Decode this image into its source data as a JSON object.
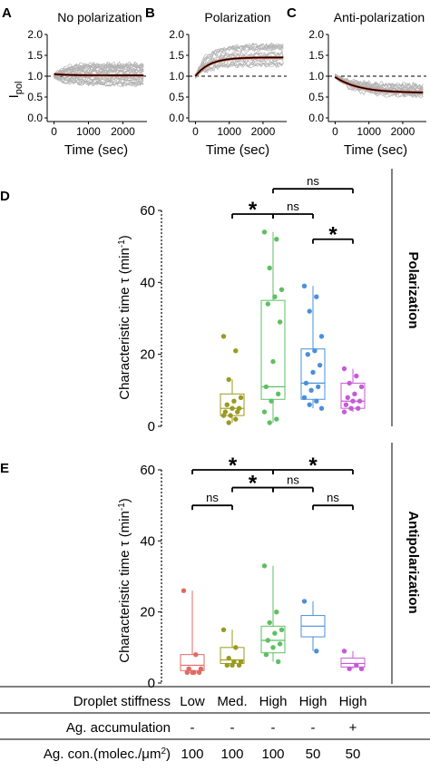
{
  "panel_letters": [
    "A",
    "B",
    "C",
    "D",
    "E"
  ],
  "colors": {
    "trace": "#b3b3b3",
    "fit_mean": "#000000",
    "fit_overlay": "#ee6a50",
    "condition_1": "#e06a63",
    "condition_2": "#9b9a1e",
    "condition_3": "#5ebf63",
    "condition_4": "#4a90d9",
    "condition_5": "#c75ad6"
  },
  "top_axes": {
    "ylabel_main": "I",
    "ylabel_sub": "pol",
    "xlabel": "Time (sec)"
  },
  "box_axes": {
    "ylabel_main": "Characteristic time  τ  (min",
    "ylabel_sup": "-1",
    "ylabel_close": ")"
  },
  "side_labels": {
    "D": "Polarization",
    "E": "Antipolarization"
  },
  "table": {
    "rows": [
      {
        "label": "Droplet stiffness",
        "values": [
          "Low",
          "Med.",
          "High",
          "High",
          "High"
        ]
      },
      {
        "label": "Ag. accumulation",
        "values": [
          "-",
          "-",
          "-",
          "-",
          "+"
        ]
      },
      {
        "label": "Ag. con.(molec./μm",
        "label_sup": "2",
        "label_close": ")",
        "values": [
          "100",
          "100",
          "100",
          "50",
          "50"
        ]
      }
    ]
  },
  "chart_data": [
    {
      "panel": "A",
      "type": "line",
      "title": "No polarization",
      "xlabel": "Time (sec)",
      "ylabel": "I pol",
      "xlim": [
        -200,
        2700
      ],
      "ylim": [
        0,
        2.0
      ],
      "xticks": [
        0,
        1000,
        2000
      ],
      "yticks": [
        0.0,
        0.5,
        1.0,
        1.5,
        2.0
      ],
      "reference_line": 1.0,
      "traces": {
        "count": 28,
        "start": 1.0,
        "end_min": 0.8,
        "end_max": 1.3,
        "tau": 300
      },
      "fit": {
        "start": 1.05,
        "end": 1.02,
        "tau": 400
      }
    },
    {
      "panel": "B",
      "type": "line",
      "title": "Polarization",
      "xlabel": "Time (sec)",
      "ylabel": "I pol",
      "xlim": [
        -200,
        2700
      ],
      "ylim": [
        0,
        2.0
      ],
      "xticks": [
        0,
        1000,
        2000
      ],
      "yticks": [
        0.0,
        0.5,
        1.0,
        1.5,
        2.0
      ],
      "reference_line": 1.0,
      "traces": {
        "count": 20,
        "start": 1.0,
        "end_min": 1.2,
        "end_max": 1.85,
        "tau": 400
      },
      "fit": {
        "start": 1.0,
        "end": 1.45,
        "tau": 420
      }
    },
    {
      "panel": "C",
      "type": "line",
      "title": "Anti-polarization",
      "xlabel": "Time (sec)",
      "ylabel": "I pol",
      "xlim": [
        -200,
        2700
      ],
      "ylim": [
        0,
        2.0
      ],
      "xticks": [
        0,
        1000,
        2000
      ],
      "yticks": [
        0.0,
        0.5,
        1.0,
        1.5,
        2.0
      ],
      "reference_line": 1.0,
      "traces": {
        "count": 20,
        "start": 1.0,
        "end_min": 0.45,
        "end_max": 0.8,
        "tau": 650
      },
      "fit": {
        "start": 0.98,
        "end": 0.6,
        "tau": 700
      }
    },
    {
      "panel": "D",
      "type": "box",
      "ylabel": "Characteristic time τ (min-1)",
      "ylim": [
        0,
        60
      ],
      "yticks": [
        0,
        20,
        40,
        60
      ],
      "groups": [
        {
          "index": 2,
          "color": "#9b9a1e",
          "box": {
            "min": 1,
            "q1": 3,
            "median": 5,
            "q3": 9,
            "max": 13
          },
          "points": [
            25,
            21,
            13,
            8,
            7,
            6,
            5,
            5,
            4,
            4,
            3,
            3,
            2,
            1
          ]
        },
        {
          "index": 3,
          "color": "#5ebf63",
          "box": {
            "min": 1,
            "q1": 7.5,
            "median": 11,
            "q3": 35,
            "max": 54
          },
          "points": [
            54,
            52,
            44,
            38,
            36,
            34,
            29,
            18,
            11,
            9,
            7,
            4,
            2,
            1
          ]
        },
        {
          "index": 4,
          "color": "#4a90d9",
          "box": {
            "min": 5,
            "q1": 7.5,
            "median": 12,
            "q3": 21.5,
            "max": 39
          },
          "points": [
            39,
            36,
            32,
            25,
            21,
            20,
            17,
            15,
            12,
            11,
            10,
            8,
            7,
            6,
            5
          ]
        },
        {
          "index": 5,
          "color": "#c75ad6",
          "box": {
            "min": 4,
            "q1": 5,
            "median": 7,
            "q3": 12,
            "max": 16
          },
          "points": [
            16,
            14,
            12,
            11,
            9,
            8,
            7,
            7,
            6,
            5,
            5,
            4
          ]
        }
      ],
      "significance": [
        {
          "from": 2,
          "to": 3,
          "label": "*",
          "level": 59
        },
        {
          "from": 3,
          "to": 4,
          "label": "ns",
          "level": 59
        },
        {
          "from": 3,
          "to": 5,
          "label": "ns",
          "level": 66
        },
        {
          "from": 4,
          "to": 5,
          "label": "*",
          "level": 52
        }
      ]
    },
    {
      "panel": "E",
      "type": "box",
      "ylabel": "Characteristic time τ (min-1)",
      "ylim": [
        0,
        60
      ],
      "yticks": [
        0,
        20,
        40,
        60
      ],
      "groups": [
        {
          "index": 1,
          "color": "#e06a63",
          "box": {
            "min": 3,
            "q1": 3.5,
            "median": 5,
            "q3": 8,
            "max": 26
          },
          "points": [
            26,
            8,
            4,
            4,
            3,
            3,
            3,
            3
          ]
        },
        {
          "index": 2,
          "color": "#9b9a1e",
          "box": {
            "min": 5,
            "q1": 5.5,
            "median": 6.5,
            "q3": 10,
            "max": 15
          },
          "points": [
            15,
            10,
            7,
            6,
            6,
            5,
            5,
            5
          ]
        },
        {
          "index": 3,
          "color": "#5ebf63",
          "box": {
            "min": 6,
            "q1": 8.5,
            "median": 12,
            "q3": 16,
            "max": 33
          },
          "points": [
            33,
            20,
            17,
            15,
            14,
            12,
            11,
            10,
            8,
            6
          ]
        },
        {
          "index": 4,
          "color": "#4a90d9",
          "box": {
            "min": 9,
            "q1": 13,
            "median": 16,
            "q3": 19,
            "max": 23
          },
          "points": [
            23,
            9
          ]
        },
        {
          "index": 5,
          "color": "#c75ad6",
          "box": {
            "min": 4,
            "q1": 4.5,
            "median": 5.5,
            "q3": 7,
            "max": 9
          },
          "points": [
            9,
            5,
            4,
            4
          ]
        }
      ],
      "significance": [
        {
          "from": 1,
          "to": 3,
          "label": "*",
          "level": 60
        },
        {
          "from": 3,
          "to": 5,
          "label": "*",
          "level": 60
        },
        {
          "from": 2,
          "to": 3,
          "label": "*",
          "level": 55
        },
        {
          "from": 3,
          "to": 4,
          "label": "ns",
          "level": 55
        },
        {
          "from": 1,
          "to": 2,
          "label": "ns",
          "level": 50
        },
        {
          "from": 4,
          "to": 5,
          "label": "ns",
          "level": 50
        }
      ]
    }
  ]
}
